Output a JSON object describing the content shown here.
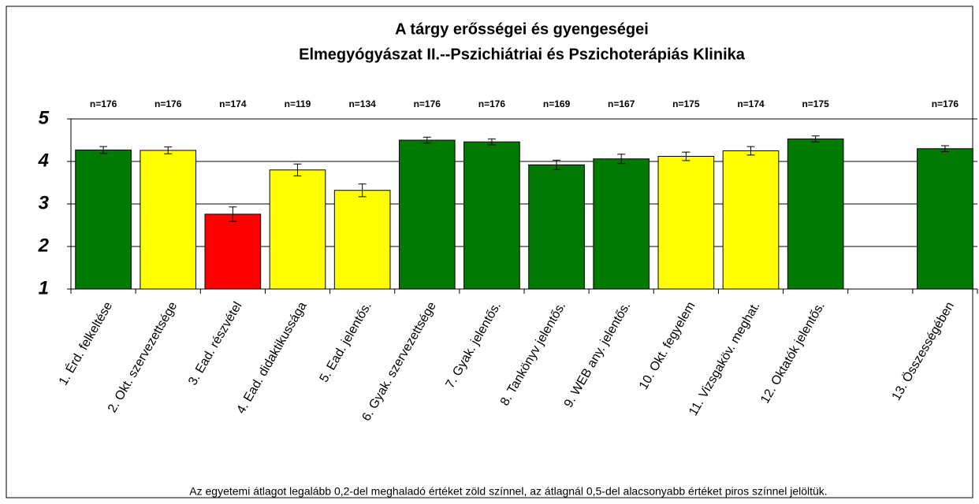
{
  "chart_data": {
    "type": "bar",
    "title": "A tárgy erősségei és gyengeségei",
    "subtitle": "Elmegyógyászat II.--Pszichiátriai és Pszichoterápiás Klinika",
    "categories": [
      "1. Érd. felkeltése",
      "2. Okt. szervezettsége",
      "3. Ead. részvétel",
      "4. Ead. didaktikussága",
      "5. Ead. jelentős.",
      "6. Gyak. szervezettsége",
      "7. Gyak. jelentős.",
      "8. Tankönyv jelentős.",
      "9. WEB any. jelentős.",
      "10. Okt. fegyelem",
      "11. Vizsgaköv. meghat.",
      "12. Oktatók jelentős.",
      null,
      "13. Összességében"
    ],
    "values": [
      4.27,
      4.26,
      2.76,
      3.8,
      3.32,
      4.5,
      4.46,
      3.92,
      4.06,
      4.12,
      4.25,
      4.53,
      null,
      4.3
    ],
    "errors": [
      0.08,
      0.08,
      0.17,
      0.14,
      0.15,
      0.07,
      0.07,
      0.11,
      0.11,
      0.1,
      0.1,
      0.07,
      null,
      0.07
    ],
    "counts": [
      "n=176",
      "n=176",
      "n=174",
      "n=119",
      "n=134",
      "n=176",
      "n=176",
      "n=169",
      "n=167",
      "n=175",
      "n=174",
      "n=175",
      null,
      "n=176"
    ],
    "colors": [
      "#007a00",
      "#ffff00",
      "#ff0000",
      "#ffff00",
      "#ffff00",
      "#007a00",
      "#007a00",
      "#007a00",
      "#007a00",
      "#ffff00",
      "#ffff00",
      "#007a00",
      null,
      "#007a00"
    ],
    "ylim": [
      1,
      5
    ],
    "yticks": [
      1,
      2,
      3,
      4,
      5
    ],
    "grid": true,
    "note": "Az egyetemi átlagot legalább 0,2-del meghaladó értéket zöld színnel, az átlagnál 0,5-del alacsonyabb értéket piros színnel jelöltük."
  }
}
